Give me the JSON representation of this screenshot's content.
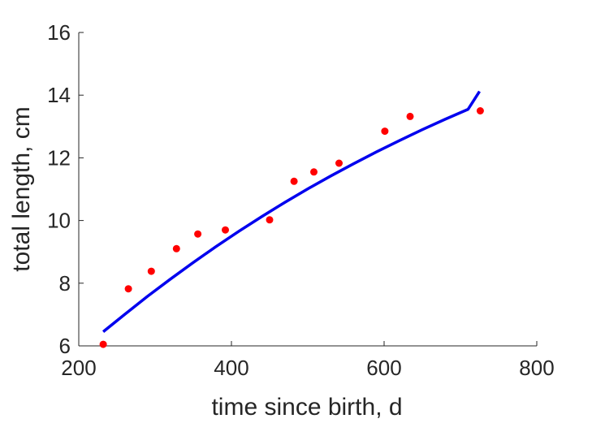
{
  "chart_data": {
    "type": "scatter",
    "title": "",
    "xlabel": "time since birth, d",
    "ylabel": "total length, cm",
    "xlim": [
      200,
      800
    ],
    "ylim": [
      6,
      16
    ],
    "xticks": [
      200,
      400,
      600,
      800
    ],
    "yticks": [
      6,
      8,
      10,
      12,
      14,
      16
    ],
    "grid": false,
    "legend": "none",
    "series": [
      {
        "kind": "points",
        "color": "#ff0000",
        "x": [
          232,
          265,
          295,
          328,
          356,
          392,
          450,
          482,
          508,
          541,
          601,
          634,
          726
        ],
        "y": [
          6.05,
          7.82,
          8.38,
          9.1,
          9.57,
          9.7,
          10.02,
          11.25,
          11.55,
          11.83,
          12.85,
          13.32,
          13.5
        ]
      },
      {
        "kind": "fit-line",
        "color": "#0000ee",
        "x": [
          232,
          260,
          290,
          320,
          350,
          380,
          410,
          440,
          470,
          500,
          530,
          560,
          590,
          620,
          650,
          680,
          710,
          725
        ],
        "y": [
          6.45,
          7.0,
          7.58,
          8.13,
          8.66,
          9.17,
          9.66,
          10.13,
          10.58,
          11.01,
          11.42,
          11.81,
          12.19,
          12.55,
          12.9,
          13.23,
          13.55,
          14.12
        ]
      }
    ]
  }
}
